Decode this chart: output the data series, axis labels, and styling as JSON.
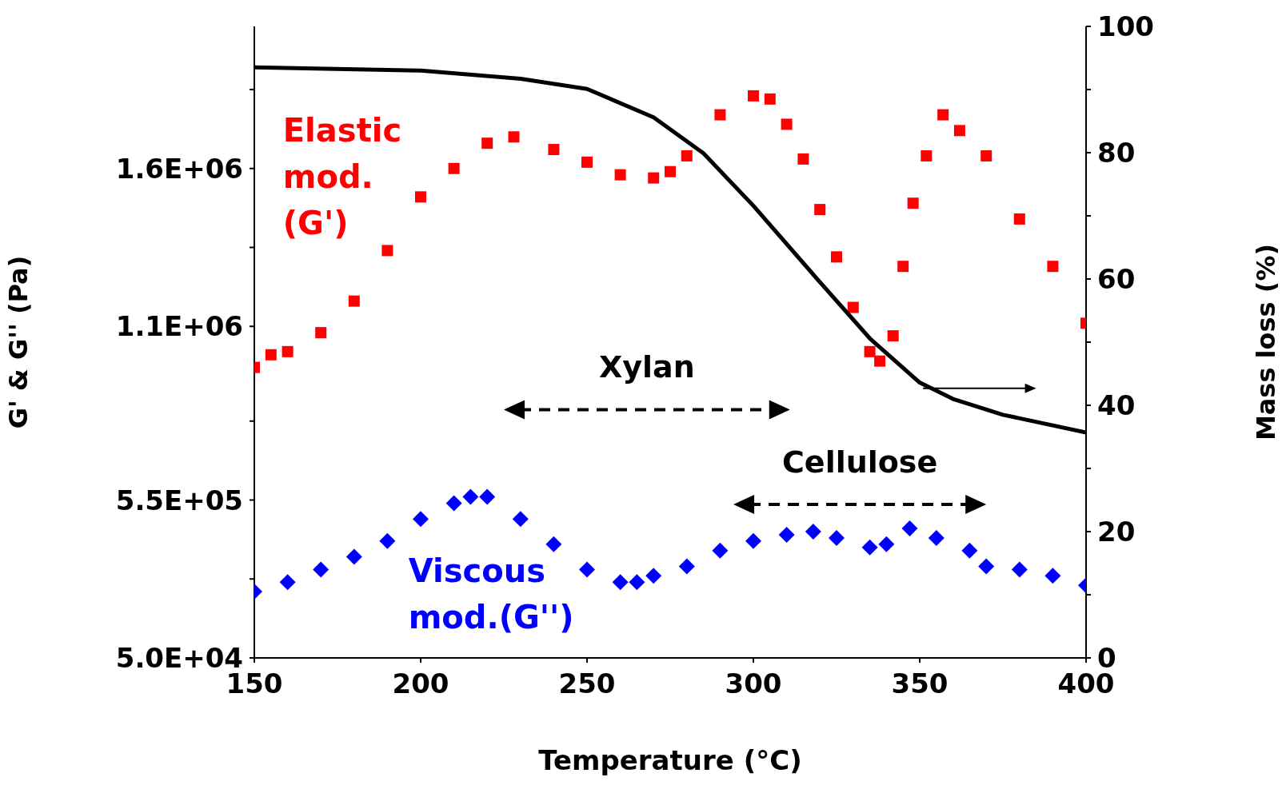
{
  "chart_data": {
    "type": "scatter",
    "xlabel": "Temperature (°C)",
    "ylabel": "G' & G'' (Pa)",
    "y2label": "Mass loss (%)",
    "xlim": [
      150,
      400
    ],
    "xticks": [
      150,
      200,
      250,
      300,
      350,
      400
    ],
    "ylim": [
      50000,
      2050000
    ],
    "yticks": [
      {
        "value": 50000,
        "label": "5.0E+04"
      },
      {
        "value": 300000,
        "label": null
      },
      {
        "value": 550000,
        "label": "5.5E+05"
      },
      {
        "value": 800000,
        "label": null
      },
      {
        "value": 1100000,
        "label": "1.1E+06"
      },
      {
        "value": 1350000,
        "label": null
      },
      {
        "value": 1600000,
        "label": "1.6E+06"
      },
      {
        "value": 1850000,
        "label": null
      }
    ],
    "y2lim": [
      0,
      100
    ],
    "y2ticks": [
      0,
      {
        "value": 10,
        "label": null
      },
      20,
      {
        "value": 30,
        "label": null
      },
      40,
      {
        "value": 50,
        "label": null
      },
      60,
      {
        "value": 70,
        "label": null
      },
      80,
      {
        "value": 90,
        "label": null
      },
      100
    ],
    "legend": false,
    "series": [
      {
        "name": "Elastic mod. (G')",
        "color": "#ff0000",
        "marker": "square",
        "x": [
          150,
          155,
          160,
          170,
          180,
          190,
          200,
          210,
          220,
          228,
          240,
          250,
          260,
          270,
          275,
          280,
          290,
          300,
          305,
          310,
          315,
          320,
          325,
          330,
          335,
          338,
          342,
          345,
          348,
          352,
          357,
          362,
          370,
          380,
          390,
          400
        ],
        "values": [
          970000,
          1010000,
          1020000,
          1080000,
          1180000,
          1340000,
          1510000,
          1600000,
          1680000,
          1700000,
          1660000,
          1620000,
          1580000,
          1570000,
          1590000,
          1640000,
          1770000,
          1830000,
          1820000,
          1740000,
          1630000,
          1470000,
          1320000,
          1160000,
          1020000,
          990000,
          1070000,
          1290000,
          1490000,
          1640000,
          1770000,
          1720000,
          1640000,
          1440000,
          1290000,
          1110000
        ]
      },
      {
        "name": "Viscous mod.(G'')",
        "color": "#0000ff",
        "marker": "diamond",
        "x": [
          150,
          160,
          170,
          180,
          190,
          200,
          210,
          215,
          220,
          230,
          240,
          250,
          260,
          265,
          270,
          280,
          290,
          300,
          310,
          318,
          325,
          335,
          340,
          347,
          355,
          365,
          370,
          380,
          390,
          400
        ],
        "values": [
          260000,
          290000,
          330000,
          370000,
          420000,
          490000,
          540000,
          560000,
          560000,
          490000,
          410000,
          330000,
          290000,
          290000,
          310000,
          340000,
          390000,
          420000,
          440000,
          450000,
          430000,
          400000,
          410000,
          460000,
          430000,
          390000,
          340000,
          330000,
          310000,
          280000
        ]
      },
      {
        "type": "line",
        "axis": "y2",
        "color": "#000000",
        "marker": "none",
        "x": [
          150,
          200,
          230,
          250,
          270,
          285,
          300,
          320,
          335,
          350,
          360,
          375,
          400
        ],
        "values": [
          93.5,
          93.0,
          91.7,
          90.1,
          85.6,
          79.9,
          71.6,
          59.5,
          50.6,
          43.6,
          41.0,
          38.5,
          35.7
        ]
      }
    ],
    "annotations": [
      "Xylan",
      "Cellulose"
    ]
  }
}
